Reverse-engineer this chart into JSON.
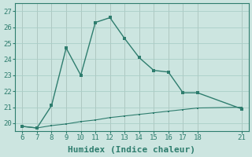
{
  "xlabel": "Humidex (Indice chaleur)",
  "line1_x": [
    6,
    7,
    8,
    9,
    10,
    11,
    12,
    13,
    14,
    15,
    16,
    17,
    18,
    21
  ],
  "line1_y": [
    19.8,
    19.7,
    21.1,
    24.7,
    23.0,
    26.3,
    26.6,
    25.3,
    24.1,
    23.3,
    23.2,
    21.9,
    21.9,
    20.9
  ],
  "line2_x": [
    6,
    7,
    8,
    9,
    10,
    11,
    12,
    13,
    14,
    15,
    16,
    17,
    18,
    21
  ],
  "line2_y": [
    19.8,
    19.7,
    19.85,
    19.95,
    20.1,
    20.2,
    20.35,
    20.45,
    20.55,
    20.65,
    20.75,
    20.85,
    20.95,
    21.0
  ],
  "line_color": "#2e7d6e",
  "bg_color": "#cce5e0",
  "grid_color": "#aacfc8",
  "xlim": [
    5.5,
    21.5
  ],
  "ylim": [
    19.5,
    27.5
  ],
  "xticks": [
    6,
    7,
    8,
    9,
    10,
    11,
    12,
    13,
    14,
    15,
    16,
    17,
    18,
    21
  ],
  "yticks": [
    20,
    21,
    22,
    23,
    24,
    25,
    26,
    27
  ],
  "tick_fontsize": 6.5,
  "label_fontsize": 8.0
}
